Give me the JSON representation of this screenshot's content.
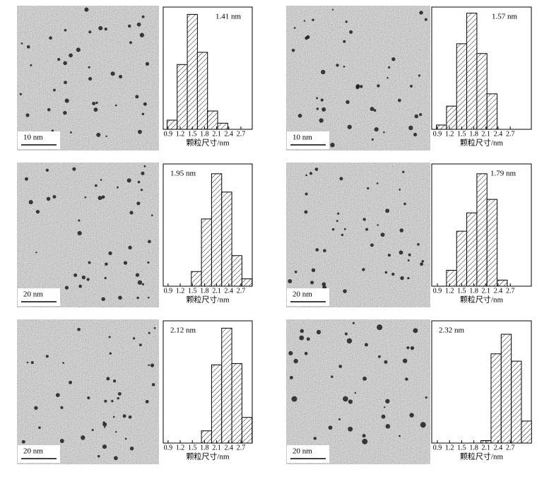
{
  "chart_data": [
    {
      "type": "histogram",
      "annotation": "1.41 nm",
      "xlabel": "颗粒尺寸/nm",
      "bins": [
        0.875,
        1.125,
        1.375,
        1.625,
        1.875,
        2.125,
        2.375
      ],
      "values": [
        7.5,
        53,
        94,
        63,
        15,
        5
      ],
      "xlim": [
        0.78,
        2.98
      ],
      "xticks": [
        0.9,
        1.2,
        1.5,
        1.8,
        2.1,
        2.4,
        2.7
      ],
      "ylim": [
        0,
        100
      ],
      "color": "#000000"
    },
    {
      "type": "histogram",
      "annotation": "1.57 nm",
      "xlabel": "颗粒尺寸/nm",
      "bins": [
        0.875,
        1.125,
        1.375,
        1.625,
        1.875,
        2.125,
        2.375
      ],
      "values": [
        3.5,
        19,
        70,
        95,
        62,
        29
      ],
      "xlim": [
        0.76,
        3.22
      ],
      "xticks": [
        0.9,
        1.2,
        1.5,
        1.8,
        2.1,
        2.4,
        2.7
      ],
      "ylim": [
        0,
        100
      ],
      "color": "#000000"
    },
    {
      "type": "histogram",
      "annotation": "1.95 nm",
      "xlabel": "颗粒尺寸/nm",
      "bins": [
        1.475,
        1.725,
        1.975,
        2.225,
        2.475,
        2.725,
        2.975
      ],
      "values": [
        12,
        55,
        92,
        77,
        25,
        6
      ],
      "xlim": [
        0.78,
        2.98
      ],
      "xticks": [
        0.9,
        1.2,
        1.5,
        1.8,
        2.1,
        2.4,
        2.7
      ],
      "ylim": [
        0,
        100
      ],
      "color": "#000000"
    },
    {
      "type": "histogram",
      "annotation": "1.79 nm",
      "xlabel": "颗粒尺寸/nm",
      "bins": [
        1.125,
        1.375,
        1.625,
        1.875,
        2.125,
        2.375,
        2.625
      ],
      "values": [
        13,
        45,
        60,
        92,
        71,
        5
      ],
      "xlim": [
        0.76,
        3.22
      ],
      "xticks": [
        0.9,
        1.2,
        1.5,
        1.8,
        2.1,
        2.4,
        2.7
      ],
      "ylim": [
        0,
        100
      ],
      "color": "#000000"
    },
    {
      "type": "histogram",
      "annotation": "2.12 nm",
      "xlabel": "颗粒尺寸/nm",
      "bins": [
        1.725,
        1.975,
        2.225,
        2.475,
        2.725,
        2.975
      ],
      "values": [
        10,
        64,
        94,
        65,
        21
      ],
      "xlim": [
        0.78,
        2.98
      ],
      "xticks": [
        0.9,
        1.2,
        1.5,
        1.8,
        2.1,
        2.4,
        2.7
      ],
      "ylim": [
        0,
        100
      ],
      "color": "#000000"
    },
    {
      "type": "histogram",
      "annotation": "2.32 nm",
      "xlabel": "颗粒尺寸/nm",
      "bins": [
        1.975,
        2.225,
        2.475,
        2.725,
        2.975,
        3.225
      ],
      "values": [
        2,
        73,
        89,
        67,
        18
      ],
      "xlim": [
        0.76,
        3.22
      ],
      "xticks": [
        0.9,
        1.2,
        1.5,
        1.8,
        2.1,
        2.4,
        2.7
      ],
      "ylim": [
        0,
        100
      ],
      "color": "#000000"
    }
  ],
  "images": [
    {
      "scale_bar": "10 nm"
    },
    {
      "scale_bar": "10 nm"
    },
    {
      "scale_bar": "20 nm"
    },
    {
      "scale_bar": "20 nm"
    },
    {
      "scale_bar": "20 nm"
    },
    {
      "scale_bar": "20 nm"
    }
  ]
}
